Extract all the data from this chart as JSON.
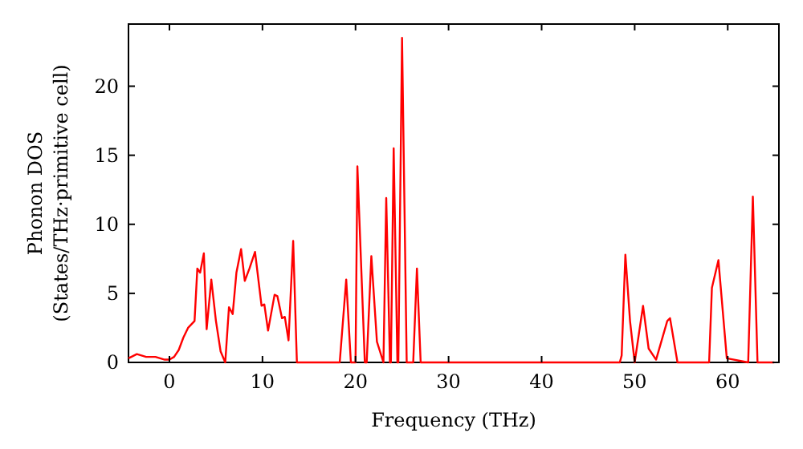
{
  "chart_data": {
    "type": "line",
    "xlabel": "Frequency (THz)",
    "ylabel": "Phonon DOS\n(States/THz·primitive cell)",
    "xlim": [
      -4.4,
      65.5
    ],
    "ylim": [
      0,
      24.5
    ],
    "xticks": [
      0,
      10,
      20,
      30,
      40,
      50,
      60
    ],
    "yticks": [
      0,
      5,
      10,
      15,
      20
    ],
    "grid": false,
    "line_style": "solid",
    "series": [
      {
        "color": "#ff0000",
        "x": [
          -4.4,
          -3.5,
          -2.5,
          -1.5,
          -0.5,
          0,
          0.5,
          1,
          1.5,
          2,
          2.7,
          3,
          3.3,
          3.7,
          4,
          4.5,
          5,
          5.5,
          6,
          6.4,
          6.8,
          7.2,
          7.7,
          8.1,
          8.6,
          9.2,
          9.9,
          10.2,
          10.6,
          11.3,
          11.6,
          12.1,
          12.4,
          12.8,
          13.3,
          13.7,
          18.3,
          19,
          19.5,
          20,
          20.2,
          21,
          21.2,
          21.7,
          22.3,
          23,
          23.3,
          23.7,
          23.8,
          24.1,
          24.5,
          24.6,
          25,
          25.5,
          26.2,
          26.6,
          27,
          48.4,
          48.6,
          49,
          49.5,
          50,
          50.9,
          51.5,
          52.3,
          53.5,
          53.8,
          54.6,
          58,
          58.3,
          59,
          59.9,
          62.2,
          62.7,
          63.2,
          65
        ],
        "values": [
          0.3,
          0.6,
          0.4,
          0.4,
          0.2,
          0.2,
          0.4,
          0.9,
          1.8,
          2.5,
          3,
          6.8,
          6.5,
          7.9,
          2.4,
          6,
          3,
          0.8,
          0,
          4,
          3.5,
          6.5,
          8.2,
          5.9,
          6.8,
          8,
          4.1,
          4.2,
          2.3,
          4.9,
          4.8,
          3.2,
          3.3,
          1.6,
          8.8,
          0,
          0,
          6,
          0,
          0,
          14.2,
          0,
          0,
          7.7,
          1.5,
          0,
          11.9,
          0,
          0,
          15.5,
          0,
          0,
          23.5,
          0,
          0,
          6.8,
          0,
          0,
          0.5,
          7.8,
          3,
          0,
          4.1,
          1,
          0.2,
          3,
          3.2,
          0,
          0,
          5.4,
          7.4,
          0.3,
          0,
          12,
          0,
          0
        ]
      }
    ]
  }
}
